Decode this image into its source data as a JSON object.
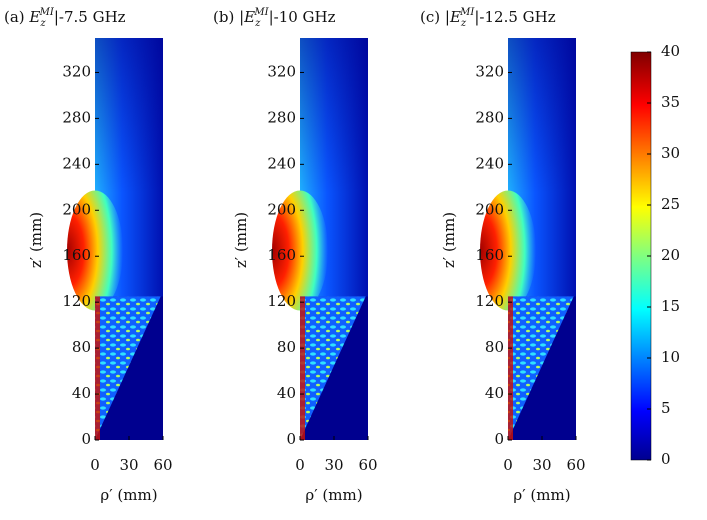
{
  "chart_data": [
    {
      "type": "heatmap",
      "title": [
        "(a) ",
        "E",
        "z",
        "MI",
        "|-7.5 GHz"
      ],
      "xlabel": "ρ′ (mm)",
      "ylabel": "z′ (mm)",
      "xlim": [
        0,
        60
      ],
      "xticks": [
        0,
        30,
        60
      ],
      "ylim": [
        0,
        350
      ],
      "yticks": [
        0,
        40,
        80,
        120,
        160,
        200,
        240,
        280,
        320
      ]
    },
    {
      "type": "heatmap",
      "title": [
        "(b) |",
        "E",
        "z",
        "MI",
        "|-10 GHz"
      ],
      "xlabel": "ρ′ (mm)",
      "ylabel": "z′ (mm)",
      "xlim": [
        0,
        60
      ],
      "xticks": [
        0,
        30,
        60
      ],
      "ylim": [
        0,
        350
      ],
      "yticks": [
        0,
        40,
        80,
        120,
        160,
        200,
        240,
        280,
        320
      ]
    },
    {
      "type": "heatmap",
      "title": [
        "(c) |",
        "E",
        "z",
        "MI",
        "|-12.5 GHz"
      ],
      "xlabel": "ρ′ (mm)",
      "ylabel": "z′ (mm)",
      "xlim": [
        0,
        60
      ],
      "xticks": [
        0,
        30,
        60
      ],
      "ylim": [
        0,
        350
      ],
      "yticks": [
        0,
        40,
        80,
        120,
        160,
        200,
        240,
        280,
        320
      ]
    }
  ],
  "colorbar": {
    "lim": [
      0,
      40
    ],
    "ticks": [
      0,
      5,
      10,
      15,
      20,
      25,
      30,
      35,
      40
    ],
    "colormap": "jet"
  }
}
